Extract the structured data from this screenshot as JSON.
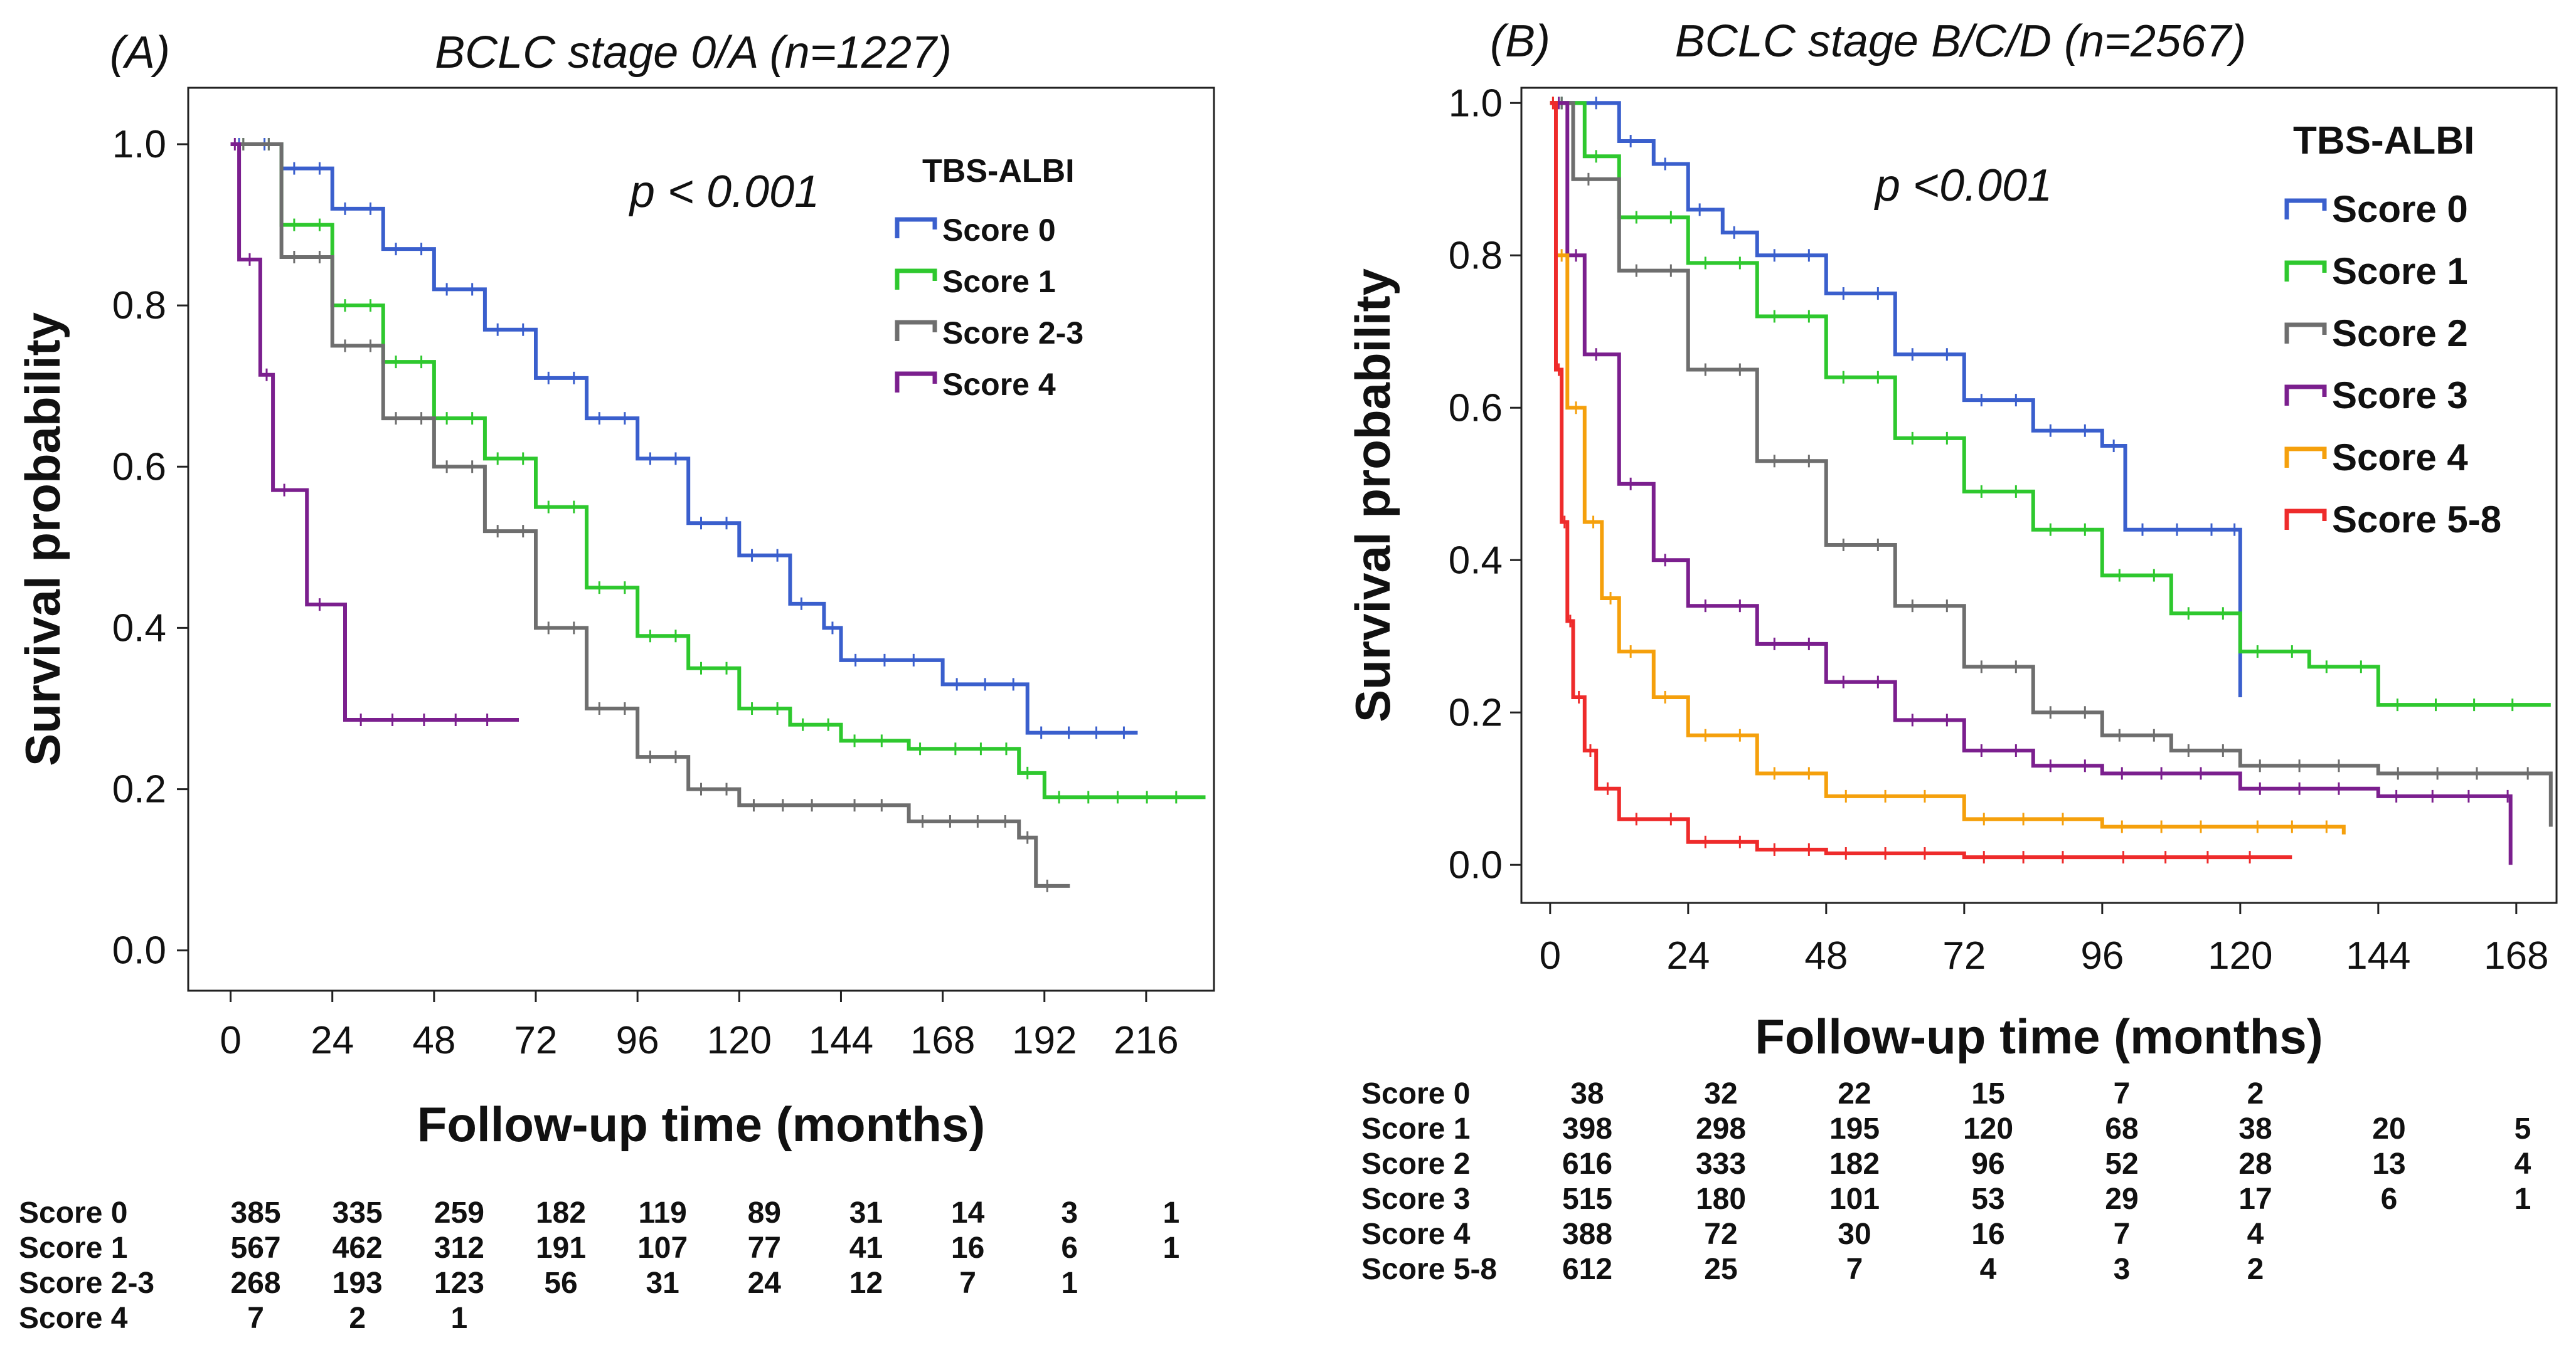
{
  "colors": {
    "score0": "#3a5fcd",
    "score1": "#2ec82e",
    "score2": "#6e6e6e",
    "score3": "#7b1f8e",
    "score4": "#f5a00c",
    "score58": "#ee2b2b"
  },
  "chart_data": [
    {
      "type": "line",
      "panel_label": "(A)",
      "title": "BCLC stage 0/A (n=1227)",
      "xlabel": "Follow-up time (months)",
      "ylabel": "Survival probability",
      "xlim": [
        -10,
        232
      ],
      "ylim": [
        -0.05,
        1.07
      ],
      "xticks": [
        0,
        24,
        48,
        72,
        96,
        120,
        144,
        168,
        192,
        216
      ],
      "yticks": [
        0.0,
        0.2,
        0.4,
        0.6,
        0.8,
        1.0
      ],
      "ytick_labels": [
        "0.0",
        "0.2",
        "0.4",
        "0.6",
        "0.8",
        "1.0"
      ],
      "annotation": "p < 0.001",
      "legend_title": "TBS-ALBI",
      "legend_position": "top-right",
      "series": [
        {
          "name": "Score 0",
          "color_key": "score0",
          "points": [
            [
              0,
              1.0
            ],
            [
              6,
              1.0
            ],
            [
              12,
              0.97
            ],
            [
              24,
              0.92
            ],
            [
              36,
              0.87
            ],
            [
              48,
              0.82
            ],
            [
              60,
              0.77
            ],
            [
              72,
              0.71
            ],
            [
              84,
              0.66
            ],
            [
              96,
              0.61
            ],
            [
              108,
              0.53
            ],
            [
              120,
              0.49
            ],
            [
              132,
              0.43
            ],
            [
              140,
              0.4
            ],
            [
              144,
              0.36
            ],
            [
              168,
              0.33
            ],
            [
              188,
              0.27
            ],
            [
              214,
              0.27
            ]
          ]
        },
        {
          "name": "Score 1",
          "color_key": "score1",
          "points": [
            [
              0,
              1.0
            ],
            [
              12,
              0.9
            ],
            [
              24,
              0.8
            ],
            [
              36,
              0.73
            ],
            [
              48,
              0.66
            ],
            [
              60,
              0.61
            ],
            [
              72,
              0.55
            ],
            [
              84,
              0.45
            ],
            [
              96,
              0.39
            ],
            [
              108,
              0.35
            ],
            [
              120,
              0.3
            ],
            [
              132,
              0.28
            ],
            [
              144,
              0.26
            ],
            [
              160,
              0.25
            ],
            [
              168,
              0.25
            ],
            [
              186,
              0.22
            ],
            [
              192,
              0.19
            ],
            [
              230,
              0.19
            ]
          ]
        },
        {
          "name": "Score 2-3",
          "color_key": "score2",
          "points": [
            [
              0,
              1.0
            ],
            [
              12,
              0.86
            ],
            [
              24,
              0.75
            ],
            [
              36,
              0.66
            ],
            [
              48,
              0.6
            ],
            [
              60,
              0.52
            ],
            [
              72,
              0.4
            ],
            [
              84,
              0.3
            ],
            [
              96,
              0.24
            ],
            [
              108,
              0.2
            ],
            [
              120,
              0.18
            ],
            [
              144,
              0.18
            ],
            [
              160,
              0.16
            ],
            [
              186,
              0.14
            ],
            [
              190,
              0.08
            ],
            [
              198,
              0.08
            ]
          ]
        },
        {
          "name": "Score 4",
          "color_key": "score3",
          "points": [
            [
              0,
              1.0
            ],
            [
              2,
              0.857
            ],
            [
              7,
              0.714
            ],
            [
              10,
              0.571
            ],
            [
              18,
              0.429
            ],
            [
              27,
              0.286
            ],
            [
              68,
              0.286
            ]
          ]
        }
      ],
      "risk_table": {
        "rows": [
          {
            "label": "Score 0",
            "values": [
              "385",
              "335",
              "259",
              "182",
              "119",
              "89",
              "31",
              "14",
              "3",
              "1"
            ]
          },
          {
            "label": "Score 1",
            "values": [
              "567",
              "462",
              "312",
              "191",
              "107",
              "77",
              "41",
              "16",
              "6",
              "1"
            ]
          },
          {
            "label": "Score 2-3",
            "values": [
              "268",
              "193",
              "123",
              "56",
              "31",
              "24",
              "12",
              "7",
              "1",
              ""
            ]
          },
          {
            "label": "Score 4",
            "values": [
              "7",
              "2",
              "1",
              "",
              "",
              "",
              "",
              "",
              "",
              ""
            ]
          }
        ]
      }
    },
    {
      "type": "line",
      "panel_label": "(B)",
      "title": "BCLC stage B/C/D (n=2567)",
      "xlabel": "Follow-up time (months)",
      "ylabel": "Survival probability",
      "xlim": [
        -5,
        175
      ],
      "ylim": [
        -0.05,
        1.02
      ],
      "xticks": [
        0,
        24,
        48,
        72,
        96,
        120,
        144,
        168
      ],
      "yticks": [
        0.0,
        0.2,
        0.4,
        0.6,
        0.8,
        1.0
      ],
      "ytick_labels": [
        "0.0",
        "0.2",
        "0.4",
        "0.6",
        "0.8",
        "1.0"
      ],
      "annotation": "p <0.001",
      "legend_title": "TBS-ALBI",
      "legend_position": "top-right",
      "series": [
        {
          "name": "Score 0",
          "color_key": "score0",
          "points": [
            [
              0,
              1.0
            ],
            [
              6,
              1.0
            ],
            [
              12,
              0.95
            ],
            [
              18,
              0.92
            ],
            [
              24,
              0.86
            ],
            [
              30,
              0.83
            ],
            [
              36,
              0.8
            ],
            [
              48,
              0.75
            ],
            [
              60,
              0.67
            ],
            [
              72,
              0.61
            ],
            [
              84,
              0.57
            ],
            [
              96,
              0.55
            ],
            [
              100,
              0.44
            ],
            [
              118,
              0.44
            ],
            [
              120,
              0.22
            ]
          ]
        },
        {
          "name": "Score 1",
          "color_key": "score1",
          "points": [
            [
              0,
              1.0
            ],
            [
              6,
              0.93
            ],
            [
              12,
              0.85
            ],
            [
              24,
              0.79
            ],
            [
              36,
              0.72
            ],
            [
              48,
              0.64
            ],
            [
              60,
              0.56
            ],
            [
              72,
              0.49
            ],
            [
              84,
              0.44
            ],
            [
              96,
              0.38
            ],
            [
              108,
              0.33
            ],
            [
              120,
              0.28
            ],
            [
              132,
              0.26
            ],
            [
              144,
              0.21
            ],
            [
              174,
              0.21
            ]
          ]
        },
        {
          "name": "Score 2",
          "color_key": "score2",
          "points": [
            [
              0,
              1.0
            ],
            [
              4,
              0.9
            ],
            [
              12,
              0.78
            ],
            [
              24,
              0.65
            ],
            [
              36,
              0.53
            ],
            [
              48,
              0.42
            ],
            [
              60,
              0.34
            ],
            [
              72,
              0.26
            ],
            [
              84,
              0.2
            ],
            [
              96,
              0.17
            ],
            [
              108,
              0.15
            ],
            [
              120,
              0.13
            ],
            [
              144,
              0.12
            ],
            [
              168,
              0.12
            ],
            [
              174,
              0.05
            ]
          ]
        },
        {
          "name": "Score 3",
          "color_key": "score3",
          "points": [
            [
              0,
              1.0
            ],
            [
              3,
              0.8
            ],
            [
              6,
              0.67
            ],
            [
              12,
              0.5
            ],
            [
              18,
              0.4
            ],
            [
              24,
              0.34
            ],
            [
              36,
              0.29
            ],
            [
              48,
              0.24
            ],
            [
              60,
              0.19
            ],
            [
              72,
              0.15
            ],
            [
              84,
              0.13
            ],
            [
              96,
              0.12
            ],
            [
              120,
              0.1
            ],
            [
              144,
              0.09
            ],
            [
              166,
              0.09
            ],
            [
              167,
              0.0
            ]
          ]
        },
        {
          "name": "Score 4",
          "color_key": "score4",
          "points": [
            [
              0,
              1.0
            ],
            [
              1,
              0.8
            ],
            [
              3,
              0.6
            ],
            [
              6,
              0.45
            ],
            [
              9,
              0.35
            ],
            [
              12,
              0.28
            ],
            [
              18,
              0.22
            ],
            [
              24,
              0.17
            ],
            [
              36,
              0.12
            ],
            [
              48,
              0.09
            ],
            [
              72,
              0.06
            ],
            [
              96,
              0.05
            ],
            [
              120,
              0.05
            ],
            [
              138,
              0.04
            ]
          ]
        },
        {
          "name": "Score 5-8",
          "color_key": "score58",
          "points": [
            [
              0,
              1.0
            ],
            [
              1,
              0.65
            ],
            [
              2,
              0.45
            ],
            [
              3,
              0.32
            ],
            [
              4,
              0.22
            ],
            [
              6,
              0.15
            ],
            [
              8,
              0.1
            ],
            [
              12,
              0.06
            ],
            [
              24,
              0.03
            ],
            [
              36,
              0.02
            ],
            [
              48,
              0.015
            ],
            [
              72,
              0.01
            ],
            [
              96,
              0.01
            ],
            [
              129,
              0.01
            ]
          ]
        }
      ],
      "risk_table": {
        "rows": [
          {
            "label": "Score 0",
            "values": [
              "38",
              "32",
              "22",
              "15",
              "7",
              "2",
              "",
              ""
            ]
          },
          {
            "label": "Score 1",
            "values": [
              "398",
              "298",
              "195",
              "120",
              "68",
              "38",
              "20",
              "5"
            ]
          },
          {
            "label": "Score 2",
            "values": [
              "616",
              "333",
              "182",
              "96",
              "52",
              "28",
              "13",
              "4"
            ]
          },
          {
            "label": "Score 3",
            "values": [
              "515",
              "180",
              "101",
              "53",
              "29",
              "17",
              "6",
              "1"
            ]
          },
          {
            "label": "Score 4",
            "values": [
              "388",
              "72",
              "30",
              "16",
              "7",
              "4",
              "",
              ""
            ]
          },
          {
            "label": "Score 5-8",
            "values": [
              "612",
              "25",
              "7",
              "4",
              "3",
              "2",
              "",
              ""
            ]
          }
        ]
      }
    }
  ]
}
